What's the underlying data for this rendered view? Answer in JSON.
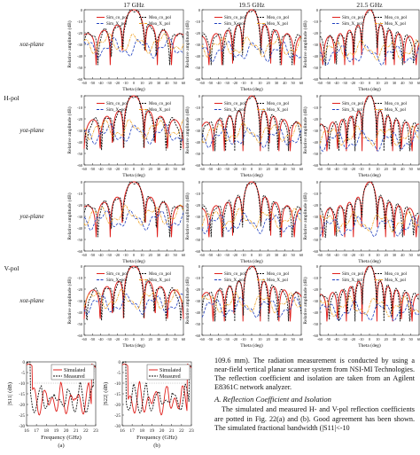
{
  "figure21": {
    "frequencies": [
      "17 GHz",
      "19.5 GHz",
      "21.5 GHz"
    ],
    "row_labels": [
      "xoz-plane",
      "yoz-plane",
      "yoz-plane",
      "xoz-plane"
    ],
    "pol_labels": [
      "H-pol",
      "V-pol"
    ],
    "ylabel": "Relative amplitude (dB)",
    "xlabel": "Theta (deg)",
    "x_ticks": [
      "-60",
      "-50",
      "-40",
      "-30",
      "-20",
      "-10",
      "0",
      "10",
      "20",
      "30",
      "40",
      "50",
      "60"
    ],
    "y_ticks": [
      "0",
      "-10",
      "-20",
      "-30",
      "-40",
      "-50",
      "-60"
    ],
    "legend": [
      "Sim_co_pol",
      "Mea_co_pol",
      "Sim_X_pol",
      "Mea_X_pol"
    ],
    "colors": {
      "sim_co": "#e0201c",
      "mea_co": "#111111",
      "sim_x": "#1f3fbf",
      "mea_x": "#f0a020"
    }
  },
  "figure22": {
    "panels": [
      {
        "ylabel": "|S11| (dB)",
        "caption": "(a)"
      },
      {
        "ylabel": "|S22| (dB)",
        "caption": "(b)"
      }
    ],
    "xlabel": "Frequency (GHz)",
    "x_ticks": [
      "16",
      "17",
      "18",
      "19",
      "20",
      "21",
      "22",
      "23"
    ],
    "y_ticks": [
      "0",
      "-5",
      "-10",
      "-15",
      "-20",
      "-25",
      "-30"
    ],
    "legend": [
      "Simulated",
      "Measured"
    ]
  },
  "text": {
    "para1": "109.6 mm). The radiation measurement is conducted by using a near-field vertical planar scanner system from NSI-MI Technologies. The reflection coefficient and isolation are taken from an Agilent E8361C network analyzer.",
    "section": "A. Reflection Coefficient and Isolation",
    "para2": "The simulated and measured H- and V-pol reflection coefficients are potted in Fig. 22(a) and (b). Good agreement has been shown. The simulated fractional bandwidth (|S11|<-10"
  }
}
